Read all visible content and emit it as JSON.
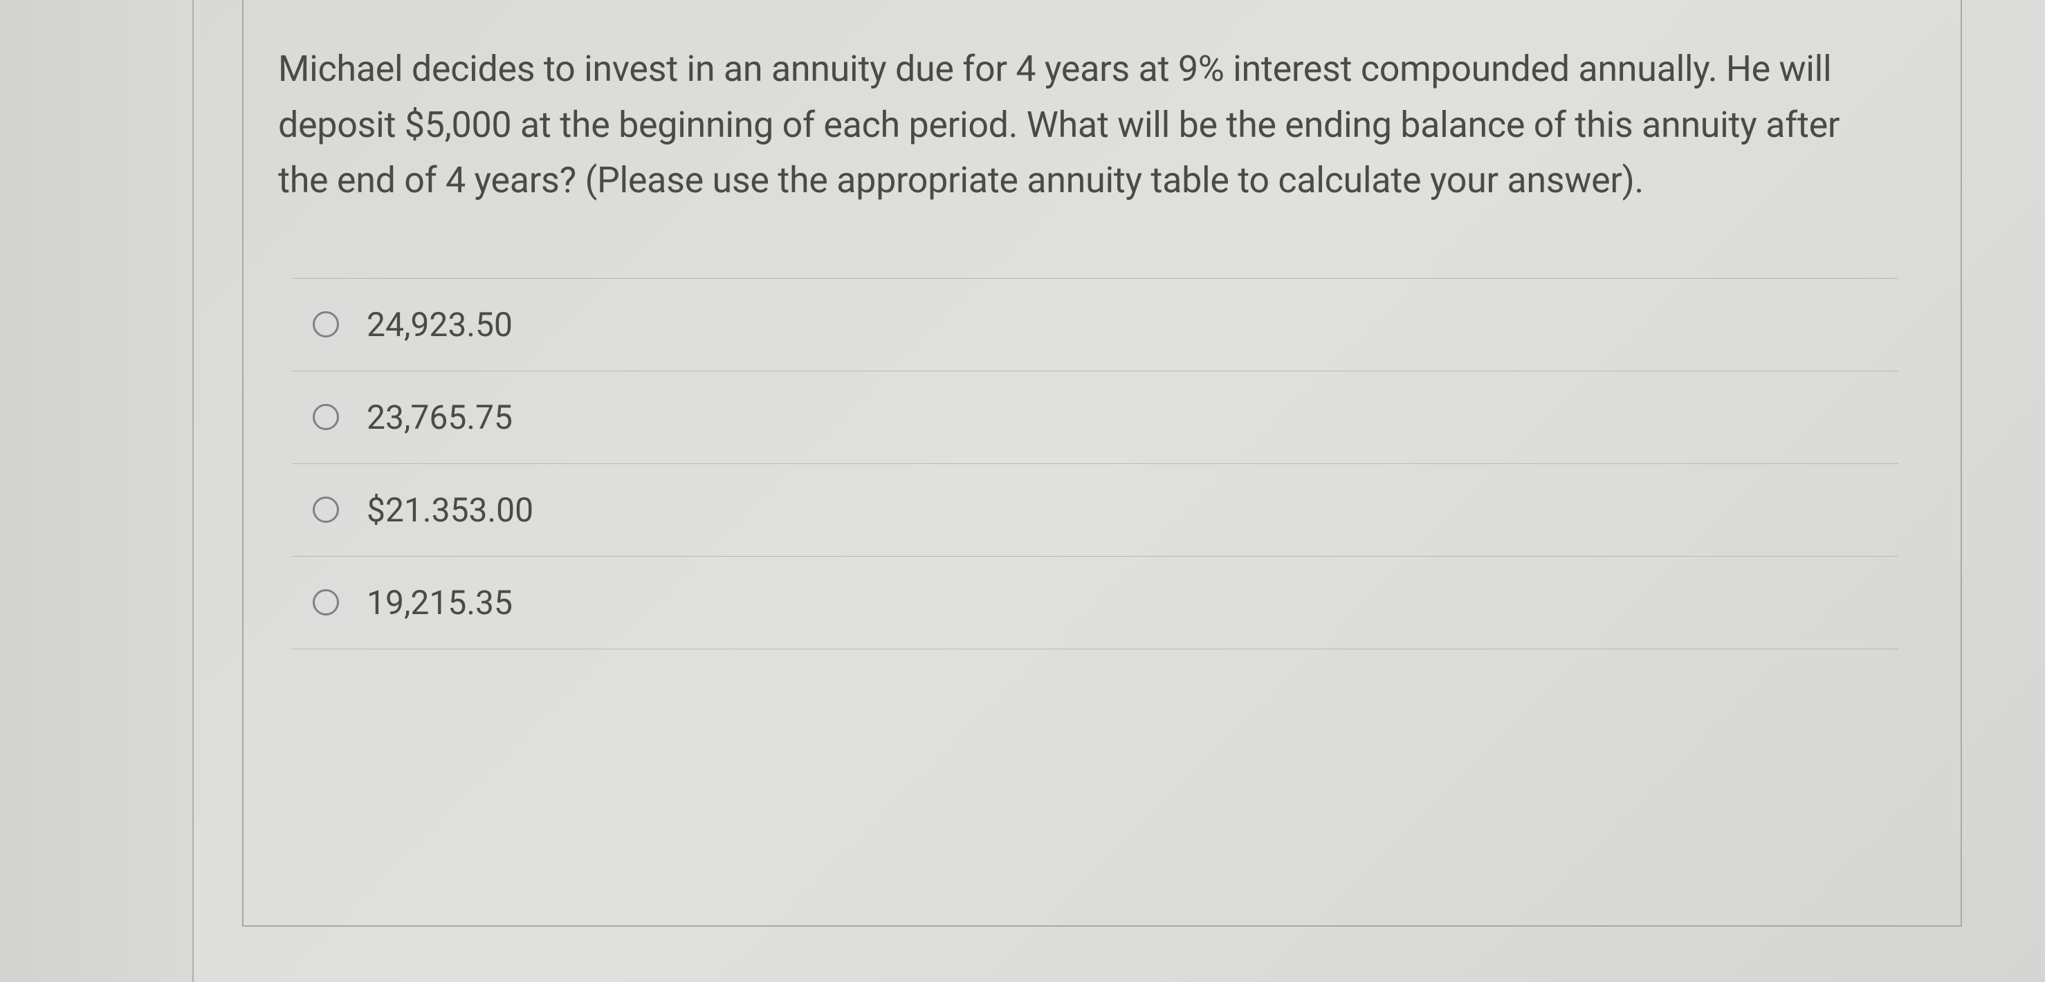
{
  "question": {
    "text": "Michael decides to invest in an annuity due for 4 years at 9% interest compounded annually.  He will deposit $5,000 at the beginning of each period. What will be the ending balance of this annuity after the end of 4 years?  (Please use the appropriate annuity table to calculate your answer)."
  },
  "options": [
    {
      "label": "24,923.50"
    },
    {
      "label": "23,765.75"
    },
    {
      "label": "$21.353.00"
    },
    {
      "label": "19,215.35"
    }
  ],
  "styling": {
    "question_fontsize": 52,
    "option_fontsize": 48,
    "text_color": "#4a4a48",
    "border_color": "#b8b8b6",
    "radio_border_color": "#808080",
    "background_gradient": [
      "#d8d8d6",
      "#e0e0de",
      "#d5d5d3"
    ]
  }
}
